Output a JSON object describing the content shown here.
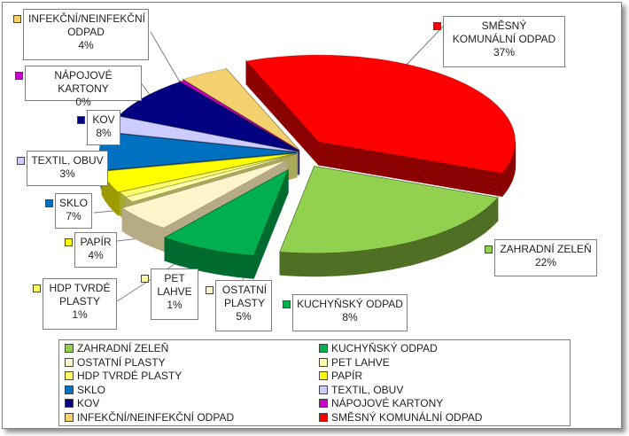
{
  "chart_data": {
    "type": "pie",
    "title": "",
    "slices": [
      {
        "label": "SMĚSNÝ KOMUNÁLNÍ ODPAD",
        "value": 37,
        "pct_label": "37%",
        "color": "#ff0000",
        "dark": "#8b0000"
      },
      {
        "label": "ZAHRADNÍ ZELEŇ",
        "value": 22,
        "pct_label": "22%",
        "color": "#92d050",
        "dark": "#4f6f24"
      },
      {
        "label": "KUCHYŇSKÝ ODPAD",
        "value": 8,
        "pct_label": "8%",
        "color": "#00b050",
        "dark": "#006b2e"
      },
      {
        "label": "OSTATNÍ PLASTY",
        "value": 5,
        "pct_label": "5%",
        "color": "#fff4cc",
        "dark": "#b7ab86"
      },
      {
        "label": "PET LAHVE",
        "value": 1,
        "pct_label": "1%",
        "color": "#ffffaa",
        "dark": "#a9a95a"
      },
      {
        "label": "HDP TVRDÉ PLASTY",
        "value": 1,
        "pct_label": "1%",
        "color": "#ffff66",
        "dark": "#a6a631"
      },
      {
        "label": "PAPÍR",
        "value": 4,
        "pct_label": "4%",
        "color": "#ffff00",
        "dark": "#9c9c00"
      },
      {
        "label": "SKLO",
        "value": 7,
        "pct_label": "7%",
        "color": "#0070c0",
        "dark": "#003c6a"
      },
      {
        "label": "TEXTIL, OBUV",
        "value": 3,
        "pct_label": "3%",
        "color": "#ccccff",
        "dark": "#6b6b99"
      },
      {
        "label": "KOV",
        "value": 8,
        "pct_label": "8%",
        "color": "#000080",
        "dark": "#000040"
      },
      {
        "label": "NÁPOJOVÉ KARTONY",
        "value": 0,
        "pct_label": "0%",
        "color": "#cc00cc",
        "dark": "#660066"
      },
      {
        "label": "INFEKČNÍ/NEINFEKČNÍ ODPAD",
        "value": 4,
        "pct_label": "4%",
        "color": "#f5d06e",
        "dark": "#9c7c2c"
      }
    ],
    "legend": {
      "placement": "bottom",
      "entries": [
        "ZAHRADNÍ ZELEŇ",
        "KUCHYŇSKÝ ODPAD",
        "OSTATNÍ PLASTY",
        "PET LAHVE",
        "HDP TVRDÉ PLASTY",
        "PAPÍR",
        "SKLO",
        "TEXTIL, OBUV",
        "KOV",
        "NÁPOJOVÉ KARTONY",
        "INFEKČNÍ/NEINFEKČNÍ ODPAD",
        "SMĚSNÝ KOMUNÁLNÍ ODPAD"
      ]
    },
    "data_labels": {
      "smesny": {
        "name": "SMĚSNÝ KOMUNÁLNÍ ODPAD",
        "pct": "37%"
      },
      "zahradni": {
        "name": "ZAHRADNÍ ZELEŇ",
        "pct": "22%"
      },
      "kuchynsky": {
        "name": "KUCHYŇSKÝ ODPAD",
        "pct": "8%"
      },
      "ostatni": {
        "name": "OSTATNÍ PLASTY",
        "pct": "5%"
      },
      "pet": {
        "name": "PET LAHVE",
        "pct": "1%"
      },
      "hdp": {
        "name": "HDP TVRDÉ PLASTY",
        "pct": "1%"
      },
      "papir": {
        "name": "PAPÍR",
        "pct": "4%"
      },
      "sklo": {
        "name": "SKLO",
        "pct": "7%"
      },
      "textil": {
        "name": "TEXTIL, OBUV",
        "pct": "3%"
      },
      "kov": {
        "name": "KOV",
        "pct": "8%"
      },
      "napojove": {
        "name": "NÁPOJOVÉ KARTONY",
        "pct": "0%"
      },
      "infekcni": {
        "name": "INFEKČNÍ/NEINFEKČNÍ ODPAD",
        "pct": "4%"
      }
    }
  }
}
